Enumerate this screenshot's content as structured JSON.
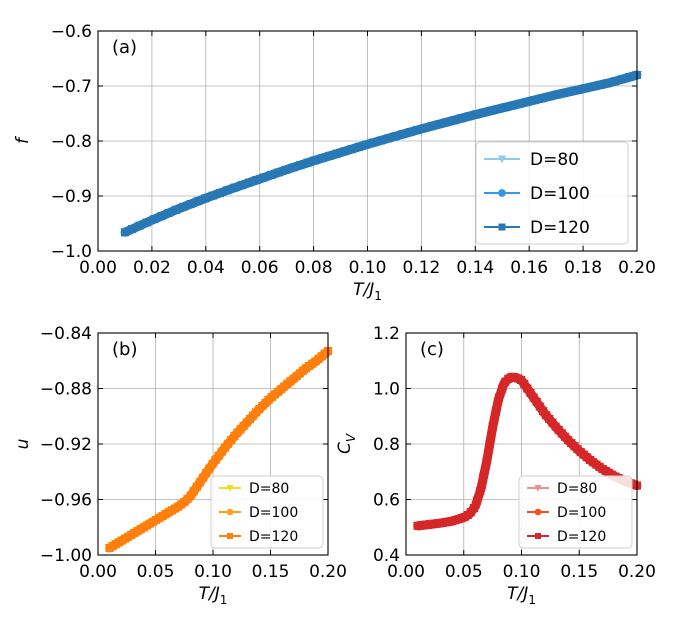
{
  "chart_data": [
    {
      "id": "a",
      "type": "line",
      "panel_label": "(a)",
      "xlabel": "T/J",
      "xlabel_sub": "1",
      "ylabel": "f",
      "xlim": [
        0.0,
        0.2
      ],
      "ylim": [
        -1.0,
        -0.6
      ],
      "xticks": [
        "0.00",
        "0.02",
        "0.04",
        "0.06",
        "0.08",
        "0.10",
        "0.12",
        "0.14",
        "0.16",
        "0.18",
        "0.20"
      ],
      "xtick_values": [
        0.0,
        0.02,
        0.04,
        0.06,
        0.08,
        0.1,
        0.12,
        0.14,
        0.16,
        0.18,
        0.2
      ],
      "yticks": [
        "−0.6",
        "−0.7",
        "−0.8",
        "−0.9",
        "−1.0"
      ],
      "ytick_values": [
        -0.6,
        -0.7,
        -0.8,
        -0.9,
        -1.0
      ],
      "legend_position": "bottom-right",
      "x": [
        0.01,
        0.02,
        0.03,
        0.04,
        0.05,
        0.06,
        0.07,
        0.08,
        0.09,
        0.1,
        0.11,
        0.12,
        0.13,
        0.14,
        0.15,
        0.16,
        0.17,
        0.18,
        0.19,
        0.2
      ],
      "series": [
        {
          "name": "D=80",
          "color": "#8ecbea",
          "marker": "triangle-down",
          "values": [
            -0.966,
            -0.944,
            -0.923,
            -0.904,
            -0.886,
            -0.869,
            -0.852,
            -0.836,
            -0.821,
            -0.806,
            -0.792,
            -0.778,
            -0.765,
            -0.752,
            -0.74,
            -0.728,
            -0.716,
            -0.705,
            -0.694,
            -0.68
          ]
        },
        {
          "name": "D=100",
          "color": "#3396e6",
          "marker": "circle",
          "values": [
            -0.966,
            -0.944,
            -0.923,
            -0.904,
            -0.886,
            -0.869,
            -0.852,
            -0.836,
            -0.821,
            -0.806,
            -0.792,
            -0.778,
            -0.765,
            -0.752,
            -0.74,
            -0.728,
            -0.716,
            -0.705,
            -0.694,
            -0.68
          ]
        },
        {
          "name": "D=120",
          "color": "#2878b5",
          "marker": "square",
          "values": [
            -0.966,
            -0.944,
            -0.923,
            -0.904,
            -0.886,
            -0.869,
            -0.852,
            -0.836,
            -0.821,
            -0.806,
            -0.792,
            -0.778,
            -0.765,
            -0.752,
            -0.74,
            -0.728,
            -0.716,
            -0.705,
            -0.694,
            -0.68
          ]
        }
      ]
    },
    {
      "id": "b",
      "type": "line",
      "panel_label": "(b)",
      "xlabel": "T/J",
      "xlabel_sub": "1",
      "ylabel": "u",
      "xlim": [
        0.0,
        0.2
      ],
      "ylim": [
        -1.0,
        -0.84
      ],
      "xticks": [
        "0.00",
        "0.05",
        "0.10",
        "0.15",
        "0.20"
      ],
      "xtick_values": [
        0.0,
        0.05,
        0.1,
        0.15,
        0.2
      ],
      "yticks": [
        "−0.84",
        "−0.88",
        "−0.92",
        "−0.96",
        "−1.00"
      ],
      "ytick_values": [
        -0.84,
        -0.88,
        -0.92,
        -0.96,
        -1.0
      ],
      "legend_position": "bottom-right",
      "x": [
        0.01,
        0.02,
        0.03,
        0.04,
        0.05,
        0.06,
        0.07,
        0.075,
        0.08,
        0.09,
        0.1,
        0.11,
        0.12,
        0.13,
        0.14,
        0.15,
        0.16,
        0.17,
        0.18,
        0.19,
        0.2
      ],
      "series": [
        {
          "name": "D=80",
          "color": "#f2e01c",
          "marker": "triangle-down",
          "values": [
            -0.995,
            -0.99,
            -0.985,
            -0.98,
            -0.975,
            -0.97,
            -0.965,
            -0.962,
            -0.958,
            -0.946,
            -0.934,
            -0.923,
            -0.913,
            -0.904,
            -0.895,
            -0.887,
            -0.88,
            -0.873,
            -0.866,
            -0.86,
            -0.853
          ]
        },
        {
          "name": "D=100",
          "color": "#ff9f1c",
          "marker": "circle",
          "values": [
            -0.995,
            -0.99,
            -0.985,
            -0.98,
            -0.975,
            -0.97,
            -0.965,
            -0.962,
            -0.958,
            -0.946,
            -0.934,
            -0.923,
            -0.913,
            -0.904,
            -0.895,
            -0.887,
            -0.88,
            -0.873,
            -0.866,
            -0.86,
            -0.853
          ]
        },
        {
          "name": "D=120",
          "color": "#ff7f0e",
          "marker": "square",
          "values": [
            -0.995,
            -0.99,
            -0.985,
            -0.98,
            -0.975,
            -0.97,
            -0.965,
            -0.962,
            -0.958,
            -0.946,
            -0.934,
            -0.923,
            -0.913,
            -0.904,
            -0.895,
            -0.887,
            -0.88,
            -0.873,
            -0.866,
            -0.86,
            -0.853
          ]
        }
      ]
    },
    {
      "id": "c",
      "type": "line",
      "panel_label": "(c)",
      "xlabel": "T/J",
      "xlabel_sub": "1",
      "ylabel": "C",
      "ylabel_sub": "V",
      "xlim": [
        0.0,
        0.2
      ],
      "ylim": [
        0.4,
        1.2
      ],
      "xticks": [
        "0.00",
        "0.05",
        "0.10",
        "0.15",
        "0.20"
      ],
      "xtick_values": [
        0.0,
        0.05,
        0.1,
        0.15,
        0.2
      ],
      "yticks": [
        "1.2",
        "1.0",
        "0.8",
        "0.6",
        "0.4"
      ],
      "ytick_values": [
        1.2,
        1.0,
        0.8,
        0.6,
        0.4
      ],
      "legend_position": "bottom-right",
      "x": [
        0.01,
        0.02,
        0.03,
        0.04,
        0.05,
        0.055,
        0.06,
        0.065,
        0.07,
        0.075,
        0.08,
        0.085,
        0.09,
        0.095,
        0.1,
        0.11,
        0.12,
        0.13,
        0.14,
        0.15,
        0.16,
        0.17,
        0.18,
        0.19,
        0.2
      ],
      "series": [
        {
          "name": "D=80",
          "color": "#f08c8c",
          "marker": "triangle-down",
          "values": [
            0.505,
            0.51,
            0.515,
            0.522,
            0.535,
            0.548,
            0.575,
            0.64,
            0.74,
            0.86,
            0.96,
            1.02,
            1.04,
            1.04,
            1.03,
            0.97,
            0.91,
            0.86,
            0.815,
            0.775,
            0.74,
            0.71,
            0.685,
            0.665,
            0.65
          ]
        },
        {
          "name": "D=100",
          "color": "#ff4d1a",
          "marker": "circle",
          "values": [
            0.505,
            0.51,
            0.515,
            0.522,
            0.535,
            0.548,
            0.575,
            0.64,
            0.74,
            0.86,
            0.96,
            1.02,
            1.04,
            1.04,
            1.03,
            0.97,
            0.91,
            0.86,
            0.815,
            0.775,
            0.74,
            0.71,
            0.685,
            0.665,
            0.65
          ]
        },
        {
          "name": "D=120",
          "color": "#d62728",
          "marker": "square",
          "values": [
            0.505,
            0.51,
            0.515,
            0.522,
            0.535,
            0.548,
            0.575,
            0.64,
            0.74,
            0.86,
            0.96,
            1.02,
            1.04,
            1.04,
            1.03,
            0.97,
            0.91,
            0.86,
            0.815,
            0.775,
            0.74,
            0.71,
            0.685,
            0.665,
            0.65
          ]
        }
      ]
    }
  ]
}
